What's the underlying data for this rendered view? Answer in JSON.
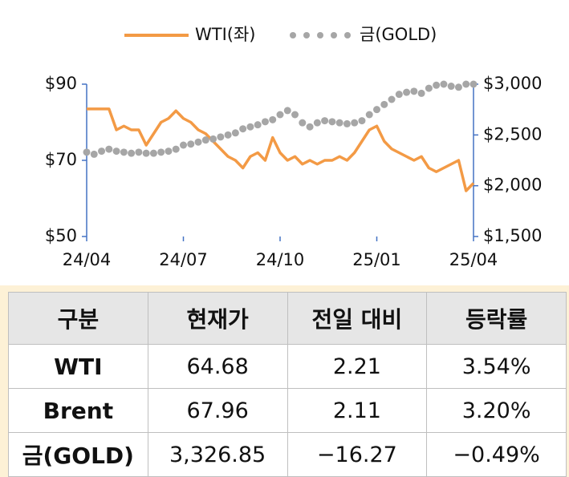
{
  "chart_data": {
    "type": "line",
    "categories": [
      "24/04",
      null,
      null,
      null,
      null,
      null,
      null,
      null,
      null,
      null,
      null,
      null,
      null,
      "24/07",
      null,
      null,
      null,
      null,
      null,
      null,
      null,
      null,
      null,
      null,
      null,
      null,
      "24/10",
      null,
      null,
      null,
      null,
      null,
      null,
      null,
      null,
      null,
      null,
      null,
      null,
      "25/01",
      null,
      null,
      null,
      null,
      null,
      null,
      null,
      null,
      null,
      null,
      null,
      null,
      "25/04"
    ],
    "series": [
      {
        "name": "WTI(좌)",
        "color": "#f39a45",
        "style": "line",
        "values": [
          83.5,
          83.5,
          83.5,
          83.5,
          78,
          79,
          78,
          78,
          74,
          77,
          80,
          81,
          83,
          81,
          80,
          78,
          77,
          75,
          73,
          71,
          70,
          68,
          71,
          72,
          70,
          76,
          72,
          70,
          71,
          69,
          70,
          69,
          70,
          70,
          71,
          70,
          72,
          75,
          78,
          79,
          75,
          73,
          72,
          71,
          70,
          71,
          68,
          67,
          68,
          69,
          70,
          62,
          64
        ]
      },
      {
        "name": "금(GOLD)",
        "color": "#a6a6a6",
        "style": "dots",
        "axis": "y2",
        "values": [
          2330,
          2310,
          2340,
          2360,
          2340,
          2330,
          2320,
          2330,
          2320,
          2320,
          2330,
          2340,
          2360,
          2400,
          2410,
          2430,
          2450,
          2460,
          2480,
          2500,
          2520,
          2560,
          2580,
          2600,
          2630,
          2650,
          2700,
          2740,
          2700,
          2620,
          2580,
          2620,
          2640,
          2630,
          2620,
          2610,
          2620,
          2640,
          2700,
          2750,
          2800,
          2850,
          2900,
          2920,
          2930,
          2910,
          2960,
          2990,
          3000,
          2980,
          2970,
          3000,
          3000
        ]
      }
    ],
    "ylim": [
      50,
      90
    ],
    "yticks": [
      {
        "value": 50,
        "label": "$50"
      },
      {
        "value": 70,
        "label": "$70"
      },
      {
        "value": 90,
        "label": "$90"
      }
    ],
    "y2lim": [
      1500,
      3000
    ],
    "y2ticks": [
      {
        "value": 1500,
        "label": "$1,500"
      },
      {
        "value": 2000,
        "label": "$2,000"
      },
      {
        "value": 2500,
        "label": "$2,500"
      },
      {
        "value": 3000,
        "label": "$3,000"
      }
    ],
    "axis_color": "#4472c4"
  },
  "table": {
    "header": [
      "구분",
      "현재가",
      "전일 대비",
      "등락률"
    ],
    "rows": [
      [
        "WTI",
        "64.68",
        "2.21",
        "3.54%"
      ],
      [
        "Brent",
        "67.96",
        "2.11",
        "3.20%"
      ],
      [
        "금(GOLD)",
        "3,326.85",
        "−16.27",
        "−0.49%"
      ]
    ]
  }
}
